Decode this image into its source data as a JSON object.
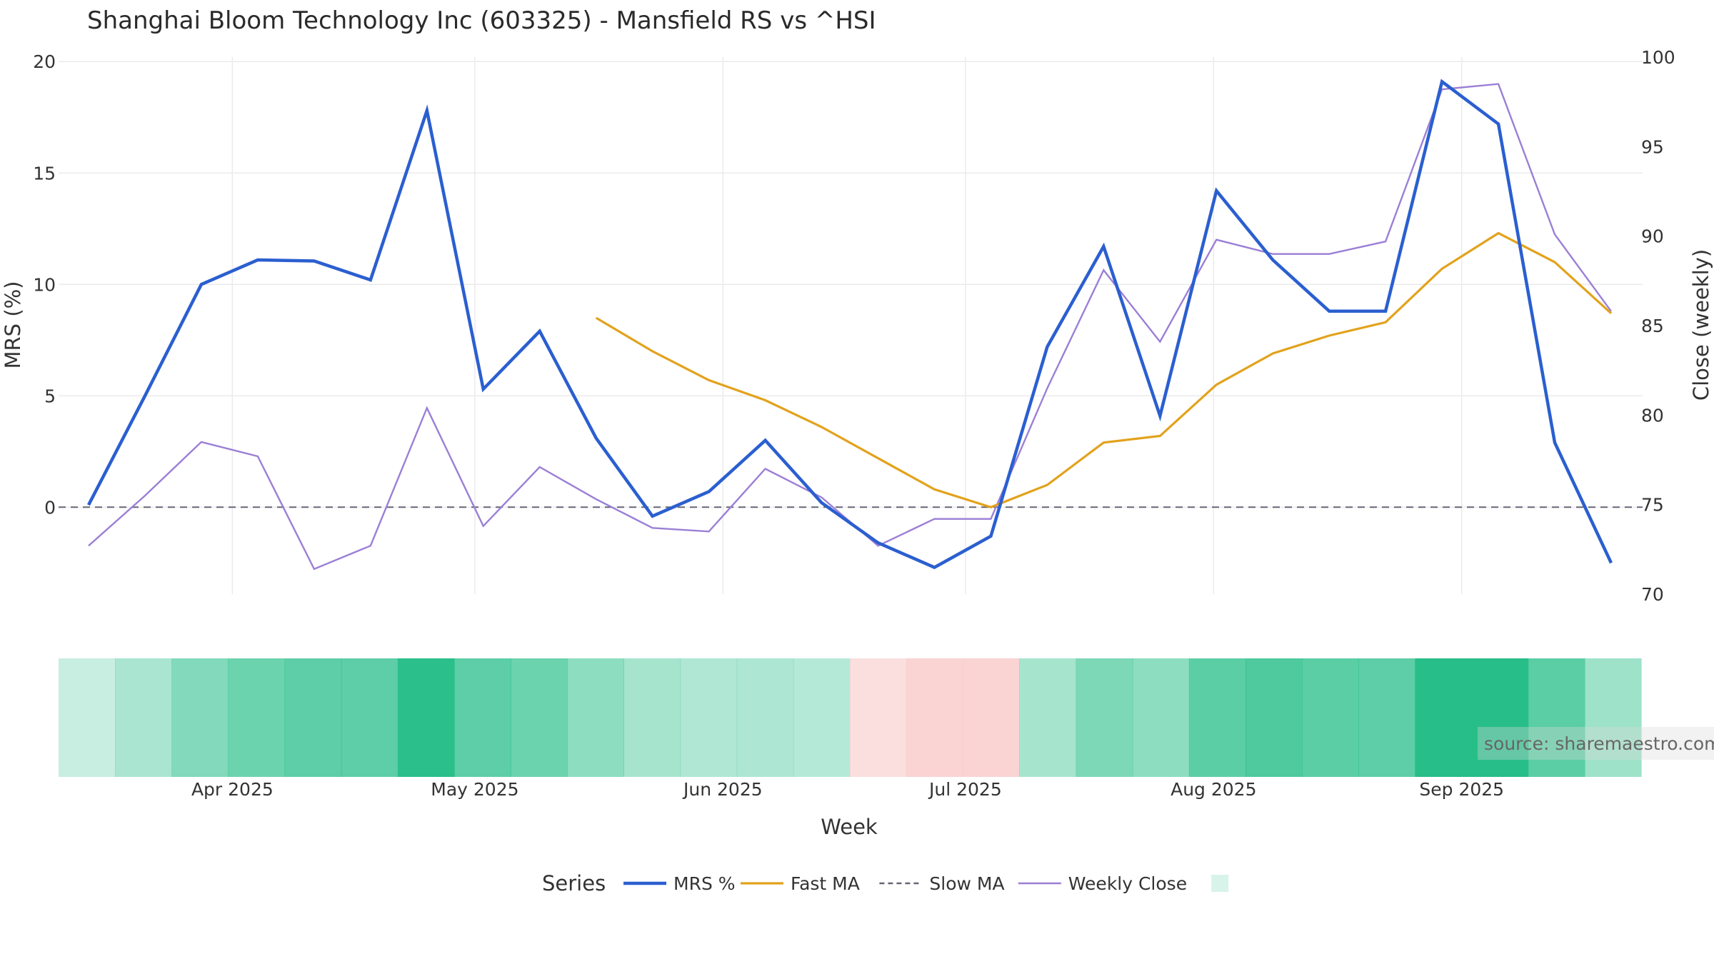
{
  "chart_data": {
    "type": "line",
    "title": "Shanghai Bloom Technology Inc (603325) - Mansfield RS vs ^HSI",
    "xlabel": "Week",
    "ylabel_left": "MRS (%)",
    "ylabel_right": "Close (weekly)",
    "source": "source: sharemaestro.com",
    "x_ticks": [
      {
        "label": "Apr 2025",
        "week": 2.55
      },
      {
        "label": "May 2025",
        "week": 6.85
      },
      {
        "label": "Jun 2025",
        "week": 11.25
      },
      {
        "label": "Jul 2025",
        "week": 15.55
      },
      {
        "label": "Aug 2025",
        "week": 19.95
      },
      {
        "label": "Sep 2025",
        "week": 24.35
      }
    ],
    "y_left": {
      "range": [
        -3.9,
        20.2
      ],
      "ticks": [
        0,
        5,
        10,
        15,
        20
      ]
    },
    "y_right": {
      "range": [
        70,
        100
      ],
      "ticks": [
        70,
        75,
        80,
        85,
        90,
        95,
        100
      ]
    },
    "slow_ma_level": 0,
    "grid": true,
    "legend": {
      "title": "Series",
      "placement": "bottom-center",
      "items": [
        {
          "label": "MRS %",
          "style": "mrs"
        },
        {
          "label": "Fast MA",
          "style": "fast"
        },
        {
          "label": "Slow MA",
          "style": "slow"
        },
        {
          "label": "Weekly Close",
          "style": "close"
        },
        {
          "label": "",
          "style": "swatch"
        }
      ]
    },
    "colors": {
      "mrs": "#2b5fd0",
      "fast": "#e2a21c",
      "slow": "#666677",
      "close": "#9b7fd6",
      "grid": "#ebebeb",
      "heat_pos": "#27be89",
      "heat_neg": "#f9c9c9"
    },
    "weeks": 28,
    "series": [
      {
        "name": "MRS %",
        "key": "mrs",
        "axis": "left",
        "values": [
          0.1,
          5.0,
          10.0,
          11.1,
          11.05,
          10.2,
          17.8,
          5.3,
          7.9,
          3.1,
          -0.4,
          0.7,
          3.0,
          0.2,
          -1.6,
          -2.7,
          -1.3,
          7.2,
          11.7,
          4.1,
          14.2,
          11.1,
          8.8,
          8.8,
          19.1,
          17.2,
          2.9,
          -2.5
        ]
      },
      {
        "name": "Fast MA",
        "key": "fast",
        "axis": "left",
        "start": 9,
        "values": [
          8.5,
          7.0,
          5.7,
          4.8,
          3.6,
          2.2,
          0.8,
          0.0,
          1.0,
          2.9,
          3.2,
          5.5,
          6.9,
          7.7,
          8.3,
          10.7,
          12.3,
          11.0,
          8.7
        ]
      },
      {
        "name": "Weekly Close",
        "key": "close",
        "axis": "right",
        "values": [
          72.7,
          75.5,
          78.5,
          77.7,
          71.4,
          72.7,
          80.4,
          73.8,
          77.1,
          75.3,
          73.7,
          73.5,
          77.0,
          75.4,
          72.7,
          74.2,
          74.2,
          81.5,
          88.1,
          84.1,
          89.8,
          89.0,
          89.0,
          89.7,
          98.2,
          98.5,
          90.1,
          85.8
        ]
      }
    ],
    "heat_strip": [
      0.12,
      0.28,
      0.5,
      0.62,
      0.7,
      0.7,
      0.98,
      0.7,
      0.62,
      0.44,
      0.3,
      0.25,
      0.26,
      0.22,
      -0.45,
      -0.75,
      -0.75,
      0.3,
      0.52,
      0.44,
      0.72,
      0.78,
      0.72,
      0.7,
      1.0,
      1.0,
      0.72,
      0.34
    ]
  }
}
